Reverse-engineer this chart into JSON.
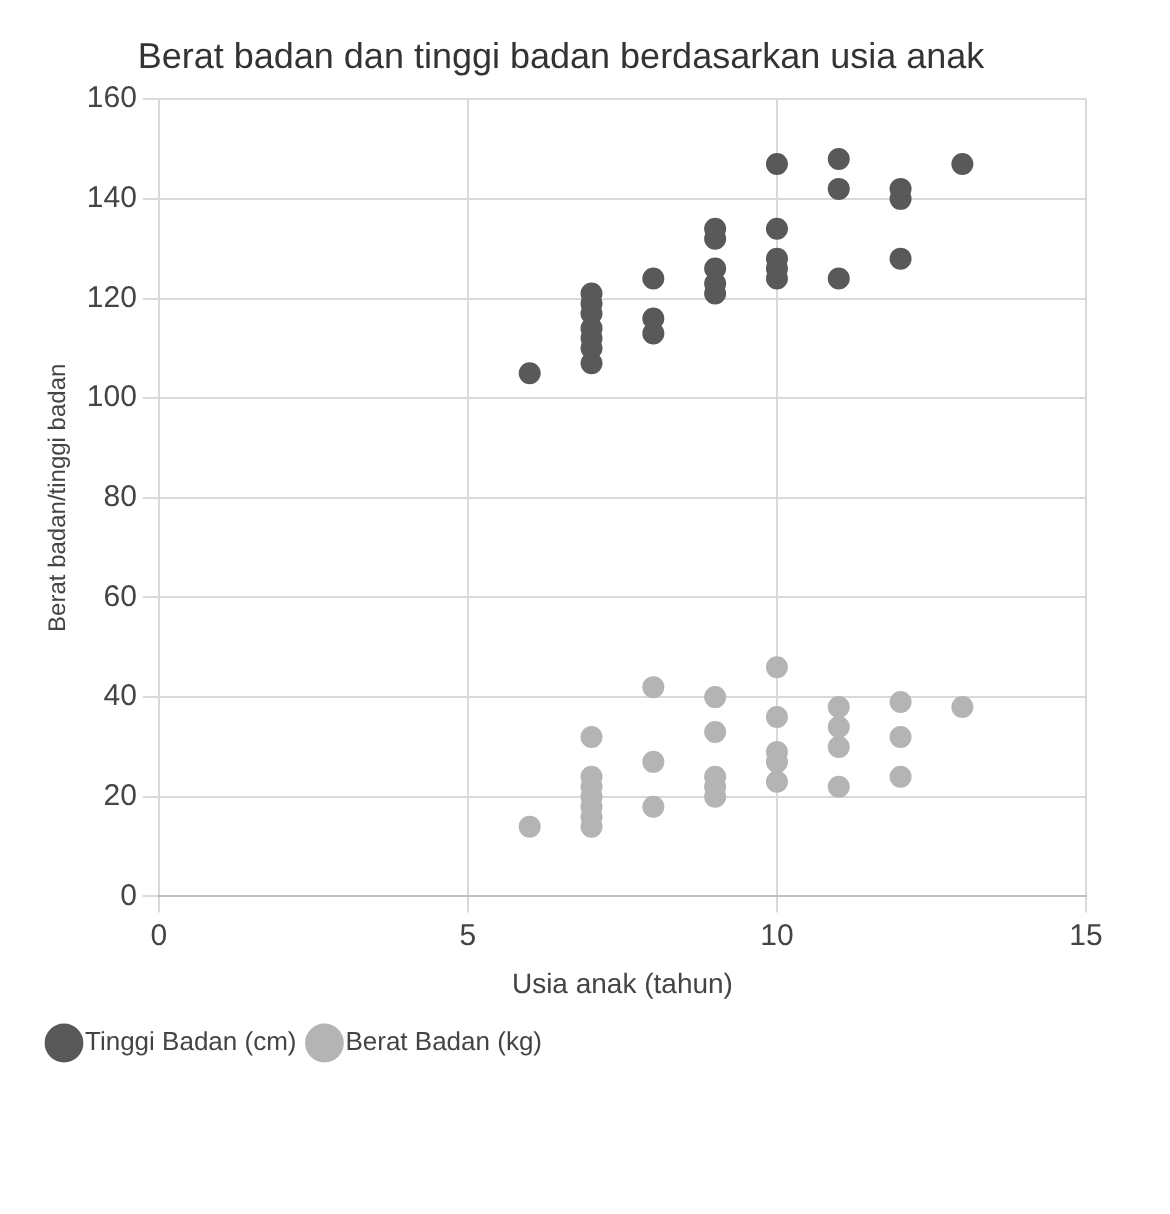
{
  "chart_data": {
    "type": "scatter",
    "title": "Berat badan dan tinggi badan berdasarkan usia anak",
    "xlabel": "Usia anak (tahun)",
    "ylabel": "Berat badan/tinggi badan",
    "xlim": [
      0,
      15
    ],
    "xticks": [
      0,
      5,
      10,
      15
    ],
    "ylim": [
      0,
      160
    ],
    "yticks": [
      0,
      20,
      40,
      60,
      80,
      100,
      120,
      140,
      160
    ],
    "grid": true,
    "legend": "bottom",
    "marker": "circle",
    "series": [
      {
        "name": "Tinggi Badan (cm)",
        "color": "#595959",
        "x": [
          6,
          7,
          7,
          7,
          7,
          7,
          7,
          7,
          8,
          8,
          8,
          9,
          9,
          9,
          9,
          9,
          10,
          10,
          10,
          10,
          10,
          11,
          11,
          11,
          12,
          12,
          12,
          13
        ],
        "values": [
          105,
          107,
          110,
          112,
          114,
          117,
          119,
          121,
          113,
          116,
          124,
          121,
          123,
          126,
          132,
          134,
          124,
          126,
          128,
          134,
          147,
          124,
          142,
          148,
          128,
          140,
          142,
          147
        ]
      },
      {
        "name": "Berat Badan (kg)",
        "color": "#b4b4b4",
        "x": [
          6,
          7,
          7,
          7,
          7,
          7,
          7,
          7,
          8,
          8,
          8,
          9,
          9,
          9,
          9,
          9,
          10,
          10,
          10,
          10,
          10,
          11,
          11,
          11,
          11,
          12,
          12,
          12,
          13
        ],
        "values": [
          14,
          14,
          16,
          18,
          20,
          22,
          24,
          32,
          18,
          27,
          42,
          20,
          22,
          24,
          33,
          40,
          23,
          27,
          29,
          36,
          46,
          22,
          30,
          34,
          38,
          24,
          32,
          39,
          38
        ]
      }
    ]
  }
}
